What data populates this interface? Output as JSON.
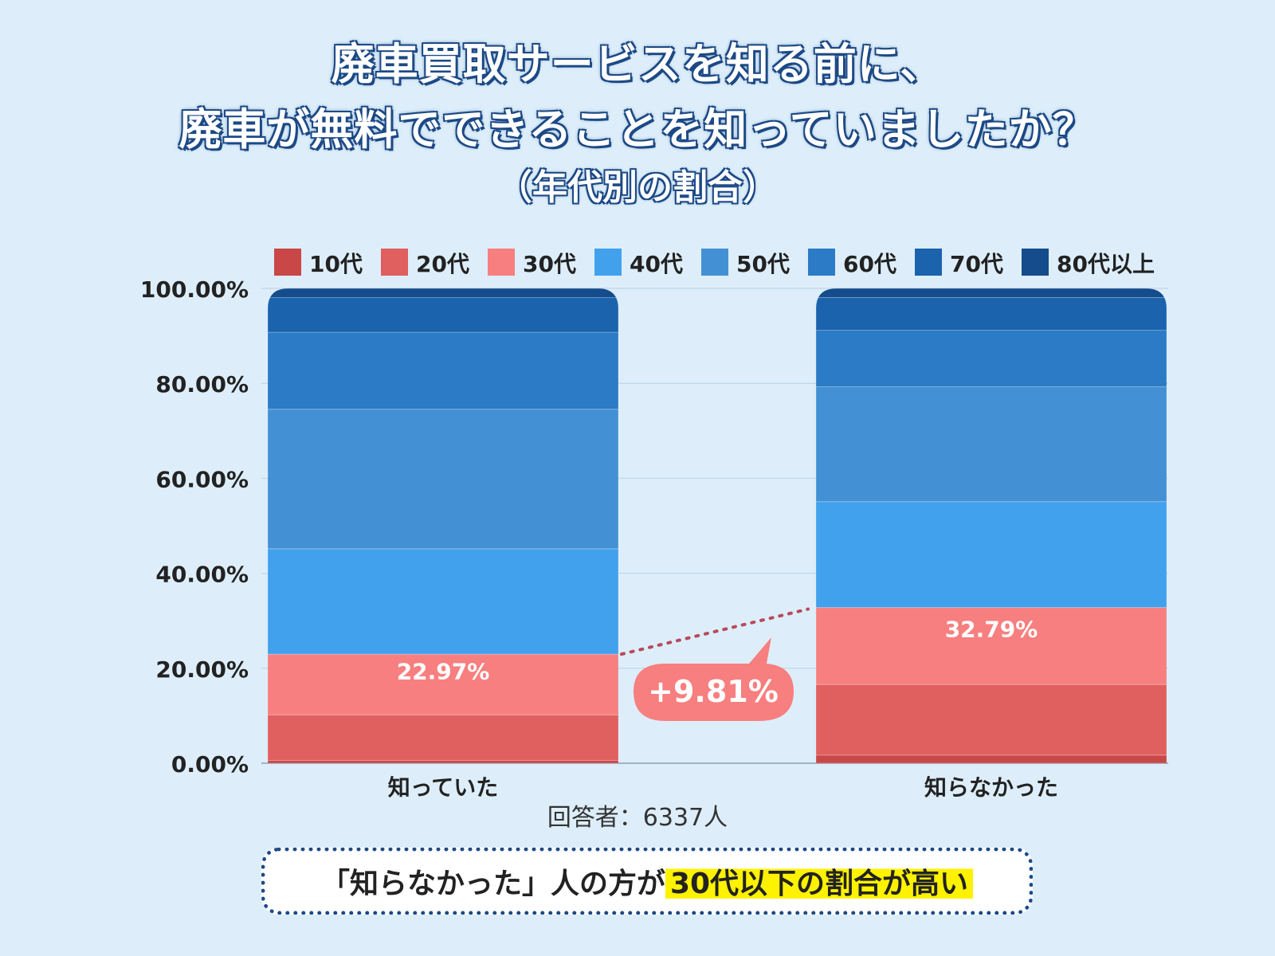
{
  "title": {
    "line1": "廃車買取サービスを知る前に、",
    "line2": "廃車が無料でできることを知っていましたか？",
    "subtitle": "（年代別の割合）"
  },
  "respondents": "回答者：6337人",
  "conclusion": {
    "before": "「知らなかった」人の方が",
    "highlight": "30代以下の割合が高い"
  },
  "colors": {
    "10代": "#c94747",
    "20代": "#e05f5f",
    "30代": "#f77f7f",
    "40代": "#42a1ec",
    "50代": "#4391d4",
    "60代": "#2b7bc6",
    "70代": "#1b63ad",
    "80代以上": "#144c8c",
    "background": "#ddeefa",
    "title_stroke": "#1d4a86",
    "callout": "#f77f7f",
    "highlight": "#fff200"
  },
  "chart_data": {
    "type": "bar",
    "stacked": true,
    "categories": [
      "知っていた",
      "知らなかった"
    ],
    "series": [
      {
        "name": "10代",
        "values": [
          0.6,
          1.7
        ]
      },
      {
        "name": "20代",
        "values": [
          9.57,
          14.89
        ]
      },
      {
        "name": "30代",
        "values": [
          12.8,
          16.2
        ]
      },
      {
        "name": "40代",
        "values": [
          22.2,
          22.3
        ]
      },
      {
        "name": "50代",
        "values": [
          29.4,
          24.2
        ]
      },
      {
        "name": "60代",
        "values": [
          16.2,
          11.9
        ]
      },
      {
        "name": "70代",
        "values": [
          7.3,
          6.9
        ]
      },
      {
        "name": "80代以上",
        "values": [
          1.93,
          1.91
        ]
      }
    ],
    "data_labels": [
      "22.97%",
      "32.79%"
    ],
    "data_label_values": [
      22.97,
      32.79
    ],
    "difference_label": "+9.81%",
    "y_ticks": [
      "100.00%",
      "80.00%",
      "60.00%",
      "40.00%",
      "20.00%",
      "0.00%"
    ],
    "y_tick_values": [
      100,
      80,
      60,
      40,
      20,
      0
    ],
    "ylim": [
      0,
      100
    ],
    "legend_position": "top",
    "grid": true
  }
}
